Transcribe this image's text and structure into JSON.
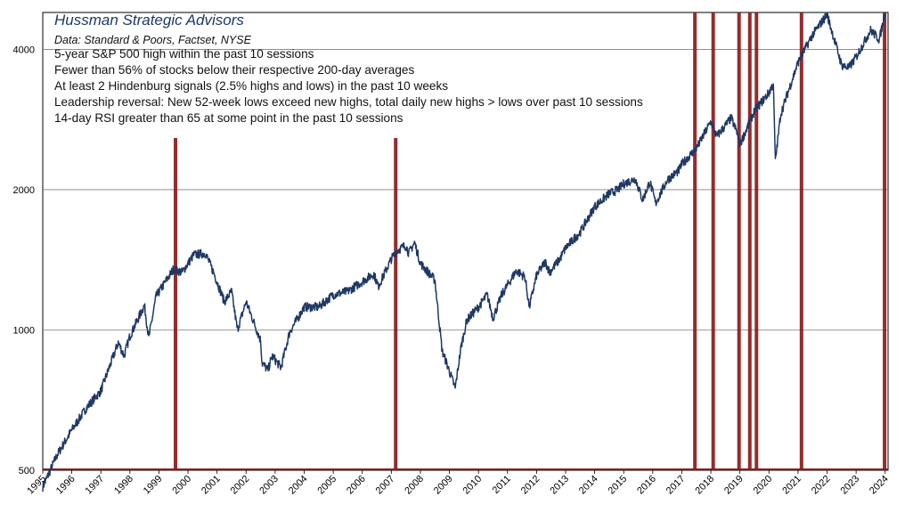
{
  "colors": {
    "line": "#1f3864",
    "signal": "#8b1a1a",
    "grid": "#7f7f7f",
    "frame": "#000000",
    "title": "#1f3864"
  },
  "chart_data": {
    "type": "line",
    "title": "Hussman Strategic Advisors",
    "subtitle": "Data: Standard & Poors, Factset, NYSE",
    "annotations": [
      "5-year S&P 500 high within the past 10 sessions",
      "Fewer than 56% of stocks below their respective 200-day averages",
      "At least 2 Hindenburg signals (2.5% highs and lows) in the past 10 weeks",
      "Leadership reversal: New 52-week lows exceed new highs, total daily new highs > lows over past 10 sessions",
      "14-day RSI greater than 65 at some point in the past 10 sessions"
    ],
    "yscale": "log",
    "ylim": [
      500,
      4800
    ],
    "xlim": [
      1995.0,
      2024.1
    ],
    "y_ticks": [
      "500",
      "1000",
      "2000",
      "4000"
    ],
    "y_tick_values": [
      500,
      1000,
      2000,
      4000
    ],
    "x_ticks": [
      "1995",
      "1996",
      "1997",
      "1998",
      "1999",
      "2000",
      "2001",
      "2002",
      "2003",
      "2004",
      "2005",
      "2006",
      "2007",
      "2008",
      "2009",
      "2010",
      "2011",
      "2012",
      "2013",
      "2014",
      "2015",
      "2016",
      "2017",
      "2018",
      "2019",
      "2020",
      "2021",
      "2022",
      "2023",
      "2024"
    ],
    "grid": "horizontal",
    "series": [
      {
        "name": "S&P 500",
        "x": [
          1995.0,
          1995.5,
          1996.0,
          1996.5,
          1997.0,
          1997.6,
          1997.8,
          1998.0,
          1998.5,
          1998.65,
          1998.9,
          1999.5,
          1999.8,
          2000.2,
          2000.6,
          2000.9,
          2001.25,
          2001.5,
          2001.7,
          2002.0,
          2002.5,
          2002.55,
          2002.75,
          2002.9,
          2003.2,
          2003.5,
          2004.0,
          2004.5,
          2005.0,
          2005.5,
          2006.0,
          2006.4,
          2006.55,
          2007.0,
          2007.2,
          2007.5,
          2007.6,
          2007.8,
          2008.0,
          2008.5,
          2008.75,
          2008.9,
          2009.2,
          2009.4,
          2009.6,
          2010.0,
          2010.3,
          2010.5,
          2010.8,
          2011.3,
          2011.6,
          2011.75,
          2012.0,
          2012.3,
          2012.45,
          2012.8,
          2013.0,
          2013.5,
          2014.0,
          2014.5,
          2014.8,
          2015.0,
          2015.4,
          2015.65,
          2015.9,
          2016.1,
          2016.5,
          2016.9,
          2017.0,
          2017.5,
          2018.0,
          2018.1,
          2018.2,
          2018.7,
          2018.9,
          2019.0,
          2019.5,
          2020.0,
          2020.15,
          2020.22,
          2020.4,
          2020.7,
          2021.0,
          2021.5,
          2022.0,
          2022.4,
          2022.5,
          2022.75,
          2023.0,
          2023.5,
          2023.8,
          2024.0
        ],
        "values": [
          460,
          540,
          610,
          680,
          740,
          940,
          880,
          970,
          1130,
          960,
          1180,
          1350,
          1330,
          1450,
          1460,
          1320,
          1150,
          1210,
          1000,
          1150,
          950,
          850,
          820,
          880,
          830,
          990,
          1120,
          1120,
          1190,
          1210,
          1270,
          1320,
          1240,
          1420,
          1480,
          1520,
          1460,
          1540,
          1390,
          1280,
          900,
          850,
          750,
          920,
          1050,
          1120,
          1190,
          1060,
          1190,
          1340,
          1300,
          1120,
          1310,
          1400,
          1330,
          1420,
          1500,
          1620,
          1840,
          1960,
          2000,
          2060,
          2110,
          1900,
          2080,
          1870,
          2100,
          2200,
          2270,
          2450,
          2800,
          2700,
          2600,
          2850,
          2650,
          2500,
          2950,
          3230,
          3380,
          2300,
          2900,
          3300,
          3750,
          4300,
          4750,
          3900,
          3700,
          3650,
          3850,
          4400,
          4200,
          4800
        ]
      }
    ],
    "signal_lines": [
      1999.57,
      2007.15,
      2017.45,
      2018.08,
      2018.97,
      2019.34,
      2019.57,
      2021.12,
      2023.98
    ]
  }
}
